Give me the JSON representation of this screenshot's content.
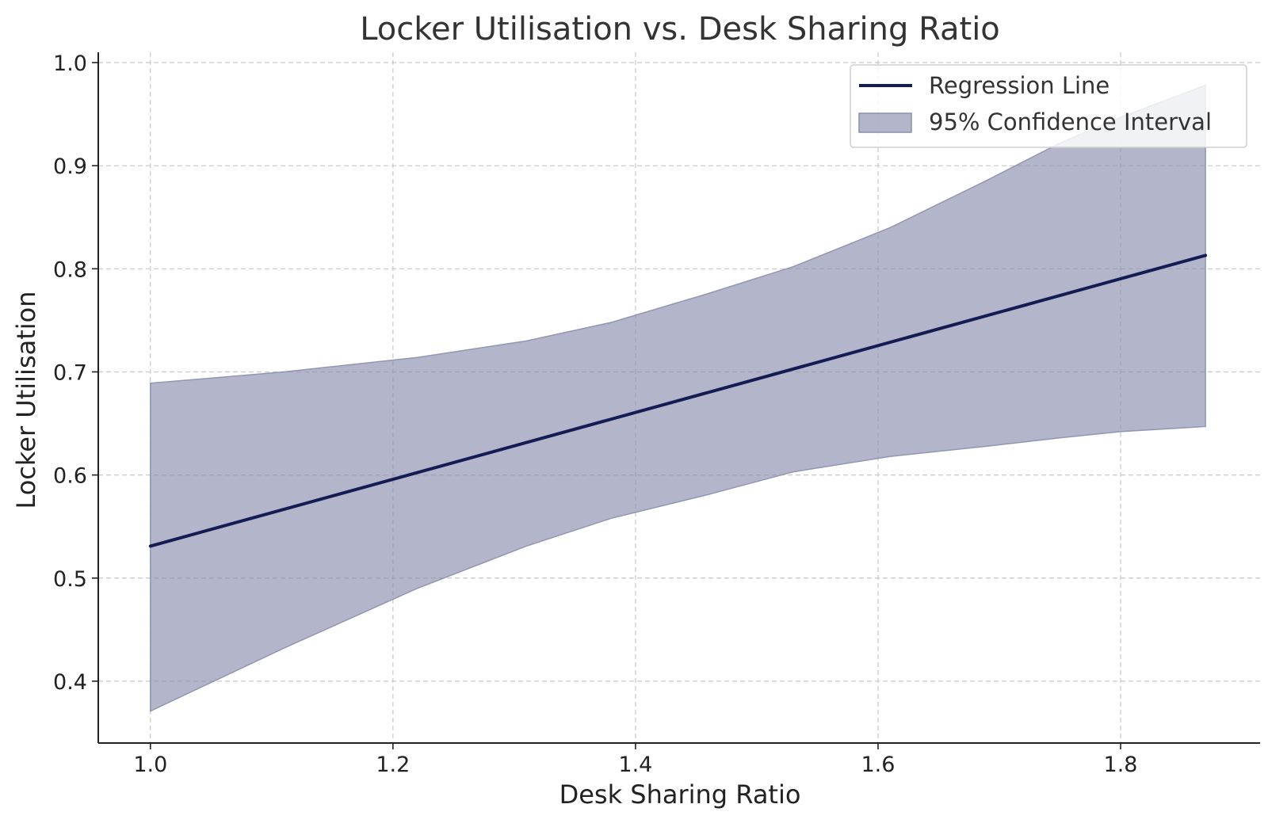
{
  "chart_data": {
    "type": "line",
    "title": "Locker Utilisation vs. Desk Sharing Ratio",
    "xlabel": "Desk Sharing Ratio",
    "ylabel": "Locker Utilisation",
    "xlim": [
      0.957,
      1.915
    ],
    "ylim": [
      0.34,
      1.01
    ],
    "x_ticks": [
      "1.0",
      "1.2",
      "1.4",
      "1.6",
      "1.8"
    ],
    "y_ticks": [
      "0.4",
      "0.5",
      "0.6",
      "0.7",
      "0.8",
      "0.9",
      "1.0"
    ],
    "grid": true,
    "legend_position": "top-right",
    "series": [
      {
        "name": "Regression Line",
        "type": "line",
        "color": "#141c54",
        "x": [
          1.0,
          1.87
        ],
        "y": [
          0.531,
          0.813
        ]
      },
      {
        "name": "95% Confidence Interval",
        "type": "band",
        "color": "#8a8fae",
        "fill_opacity": 0.65,
        "x": [
          1.0,
          1.11,
          1.22,
          1.31,
          1.38,
          1.46,
          1.53,
          1.61,
          1.69,
          1.75,
          1.8,
          1.87
        ],
        "upper": [
          0.689,
          0.7,
          0.714,
          0.73,
          0.748,
          0.776,
          0.802,
          0.84,
          0.886,
          0.922,
          0.947,
          0.978
        ],
        "lower": [
          0.371,
          0.432,
          0.49,
          0.531,
          0.558,
          0.581,
          0.603,
          0.618,
          0.628,
          0.636,
          0.642,
          0.647
        ]
      }
    ]
  }
}
